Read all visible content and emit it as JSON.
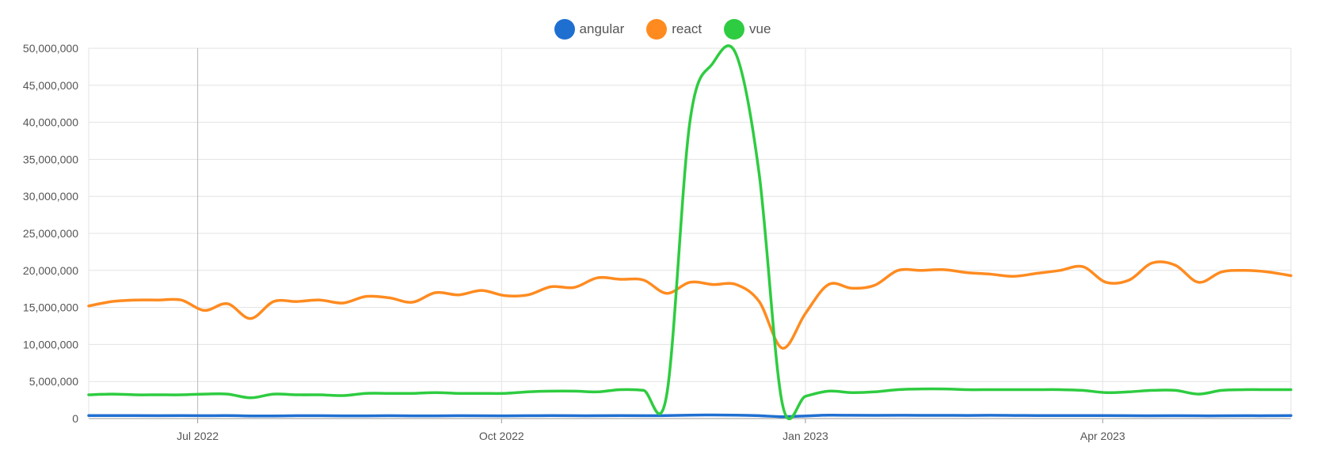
{
  "chart_data": {
    "type": "line",
    "legend_position": "top-center",
    "grid": true,
    "ylim": [
      0,
      50000000
    ],
    "y_ticks": [
      "0",
      "5,000,000",
      "10,000,000",
      "15,000,000",
      "20,000,000",
      "25,000,000",
      "30,000,000",
      "35,000,000",
      "40,000,000",
      "45,000,000",
      "50,000,000"
    ],
    "x_ticks": [
      {
        "label": "Jul 2022",
        "date": "2022-07-01"
      },
      {
        "label": "Oct 2022",
        "date": "2022-10-01"
      },
      {
        "label": "Jan 2023",
        "date": "2023-01-01"
      },
      {
        "label": "Apr 2023",
        "date": "2023-04-01"
      }
    ],
    "xlim": [
      "2022-05-29",
      "2023-05-28"
    ],
    "x": [
      "2022-05-29",
      "2022-06-05",
      "2022-06-12",
      "2022-06-19",
      "2022-06-26",
      "2022-07-03",
      "2022-07-10",
      "2022-07-17",
      "2022-07-24",
      "2022-07-31",
      "2022-08-07",
      "2022-08-14",
      "2022-08-21",
      "2022-08-28",
      "2022-09-04",
      "2022-09-11",
      "2022-09-18",
      "2022-09-25",
      "2022-10-02",
      "2022-10-09",
      "2022-10-16",
      "2022-10-23",
      "2022-10-30",
      "2022-11-06",
      "2022-11-13",
      "2022-11-20",
      "2022-11-27",
      "2022-12-04",
      "2022-12-11",
      "2022-12-18",
      "2022-12-25",
      "2023-01-01",
      "2023-01-08",
      "2023-01-15",
      "2023-01-22",
      "2023-01-29",
      "2023-02-05",
      "2023-02-12",
      "2023-02-19",
      "2023-02-26",
      "2023-03-05",
      "2023-03-12",
      "2023-03-19",
      "2023-03-26",
      "2023-04-02",
      "2023-04-09",
      "2023-04-16",
      "2023-04-23",
      "2023-04-30",
      "2023-05-07",
      "2023-05-14",
      "2023-05-21",
      "2023-05-28"
    ],
    "series": [
      {
        "name": "angular",
        "color": "#1f6fd1",
        "values": [
          400000,
          400000,
          400000,
          380000,
          400000,
          380000,
          400000,
          350000,
          350000,
          380000,
          380000,
          360000,
          360000,
          380000,
          360000,
          360000,
          380000,
          370000,
          360000,
          380000,
          390000,
          380000,
          380000,
          390000,
          380000,
          390000,
          450000,
          480000,
          450000,
          380000,
          250000,
          350000,
          450000,
          440000,
          430000,
          440000,
          430000,
          430000,
          420000,
          440000,
          420000,
          410000,
          400000,
          400000,
          390000,
          380000,
          370000,
          380000,
          370000,
          370000,
          380000,
          380000,
          390000
        ]
      },
      {
        "name": "react",
        "color": "#ff8b20",
        "values": [
          15200000,
          15800000,
          16000000,
          16000000,
          16000000,
          14600000,
          15500000,
          13500000,
          15800000,
          15800000,
          16000000,
          15600000,
          16500000,
          16300000,
          15700000,
          17000000,
          16700000,
          17300000,
          16600000,
          16700000,
          17800000,
          17700000,
          19000000,
          18800000,
          18700000,
          16900000,
          18400000,
          18100000,
          18100000,
          15800000,
          9500000,
          14200000,
          18100000,
          17600000,
          18000000,
          20000000,
          20000000,
          20100000,
          19700000,
          19500000,
          19200000,
          19600000,
          20000000,
          20500000,
          18400000,
          18700000,
          21000000,
          20700000,
          18400000,
          19800000,
          20000000,
          19800000,
          19300000
        ]
      },
      {
        "name": "vue",
        "color": "#2ecc40",
        "values": [
          3200000,
          3300000,
          3200000,
          3200000,
          3200000,
          3300000,
          3300000,
          2800000,
          3300000,
          3200000,
          3200000,
          3100000,
          3400000,
          3400000,
          3400000,
          3500000,
          3400000,
          3400000,
          3400000,
          3600000,
          3700000,
          3700000,
          3600000,
          3900000,
          3800000,
          3200000,
          40000000,
          48000000,
          49200000,
          33000000,
          2000000,
          3000000,
          3700000,
          3500000,
          3600000,
          3900000,
          4000000,
          4000000,
          3900000,
          3900000,
          3900000,
          3900000,
          3900000,
          3800000,
          3500000,
          3600000,
          3800000,
          3800000,
          3300000,
          3800000,
          3900000,
          3900000,
          3900000
        ]
      }
    ]
  }
}
